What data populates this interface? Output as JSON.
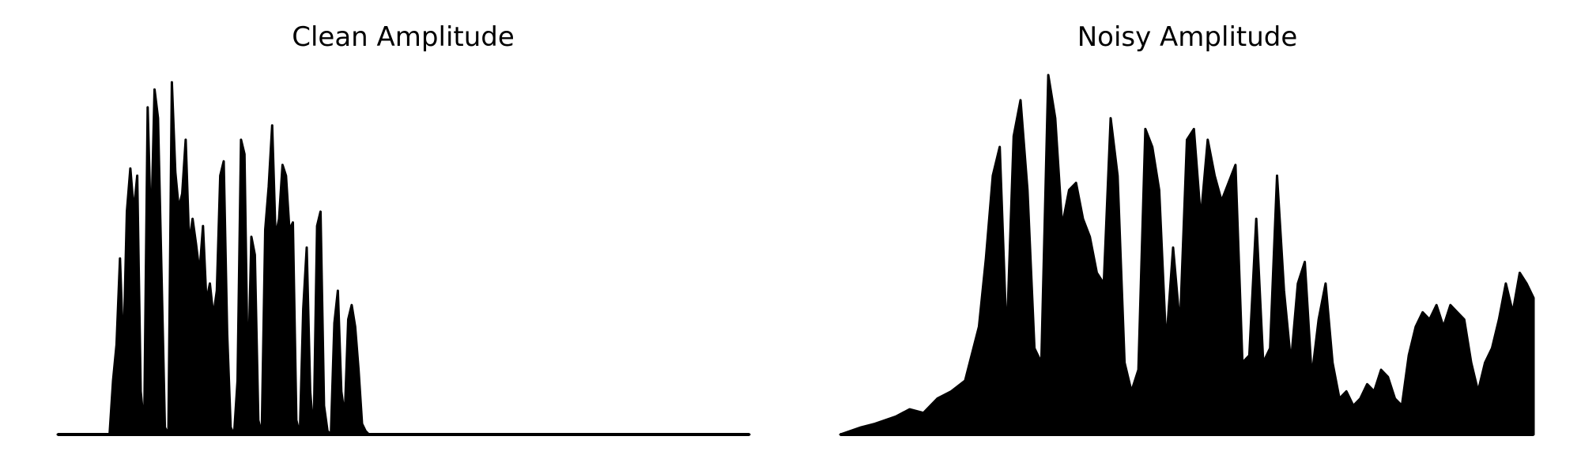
{
  "colors": {
    "background": "#ffffff",
    "waveform": "#000000"
  },
  "chart_data": [
    {
      "type": "area",
      "title": "Clean Amplitude",
      "xlabel": "",
      "ylabel": "",
      "axes_visible": false,
      "grid": false,
      "ylim": [
        0,
        1.0
      ],
      "x": [
        0,
        5,
        10,
        15,
        16,
        17,
        18,
        19,
        20,
        21,
        22,
        23,
        24,
        25,
        26,
        27,
        28,
        29,
        30,
        31,
        32,
        33,
        34,
        35,
        36,
        37,
        38,
        39,
        40,
        41,
        42,
        43,
        44,
        45,
        46,
        47,
        48,
        49,
        50,
        51,
        52,
        53,
        54,
        55,
        56,
        57,
        58,
        59,
        60,
        61,
        62,
        63,
        64,
        65,
        66,
        67,
        68,
        69,
        70,
        71,
        72,
        73,
        74,
        75,
        76,
        77,
        78,
        79,
        80,
        81,
        82,
        83,
        84,
        85,
        86,
        87,
        88,
        89,
        90,
        91,
        92,
        93,
        94,
        95,
        100,
        110,
        120,
        130,
        140,
        150,
        160,
        170,
        180,
        190,
        200
      ],
      "y": [
        0,
        0,
        0,
        0,
        0.15,
        0.25,
        0.49,
        0.22,
        0.62,
        0.74,
        0.62,
        0.72,
        0.12,
        0.02,
        0.91,
        0.55,
        0.96,
        0.88,
        0.45,
        0.02,
        0,
        0.98,
        0.73,
        0.63,
        0.67,
        0.82,
        0.53,
        0.6,
        0.53,
        0.45,
        0.58,
        0.37,
        0.42,
        0.33,
        0.4,
        0.72,
        0.76,
        0.28,
        0.02,
        0,
        0.15,
        0.82,
        0.78,
        0.14,
        0.55,
        0.5,
        0.04,
        0,
        0.57,
        0.69,
        0.86,
        0.55,
        0.6,
        0.75,
        0.72,
        0.57,
        0.59,
        0.04,
        0,
        0.35,
        0.52,
        0.12,
        0,
        0.58,
        0.62,
        0.08,
        0.01,
        0,
        0.31,
        0.4,
        0.12,
        0.05,
        0.32,
        0.36,
        0.3,
        0.18,
        0.03,
        0.01,
        0,
        0,
        0,
        0,
        0,
        0,
        0,
        0,
        0,
        0,
        0,
        0,
        0,
        0,
        0,
        0,
        0
      ]
    },
    {
      "type": "area",
      "title": "Noisy Amplitude",
      "xlabel": "",
      "ylabel": "",
      "axes_visible": false,
      "grid": false,
      "ylim": [
        0,
        1.0
      ],
      "x": [
        0,
        3,
        5,
        8,
        10,
        12,
        14,
        16,
        18,
        20,
        21,
        22,
        23,
        24,
        25,
        26,
        27,
        28,
        29,
        30,
        31,
        32,
        33,
        34,
        35,
        36,
        37,
        38,
        39,
        40,
        41,
        42,
        43,
        44,
        45,
        46,
        47,
        48,
        49,
        50,
        51,
        52,
        53,
        54,
        55,
        56,
        57,
        58,
        59,
        60,
        61,
        62,
        63,
        64,
        65,
        66,
        67,
        68,
        69,
        70,
        71,
        72,
        73,
        74,
        75,
        76,
        77,
        78,
        79,
        80,
        81,
        82,
        83,
        84,
        85,
        86,
        87,
        88,
        89,
        90,
        91,
        92,
        93,
        94,
        95,
        96,
        97,
        98,
        99,
        100
      ],
      "y": [
        0,
        0.02,
        0.03,
        0.05,
        0.07,
        0.06,
        0.1,
        0.12,
        0.15,
        0.3,
        0.49,
        0.72,
        0.8,
        0.26,
        0.83,
        0.93,
        0.68,
        0.24,
        0.2,
        1.0,
        0.88,
        0.58,
        0.68,
        0.7,
        0.6,
        0.55,
        0.45,
        0.42,
        0.88,
        0.72,
        0.2,
        0.12,
        0.18,
        0.85,
        0.8,
        0.68,
        0.25,
        0.52,
        0.3,
        0.82,
        0.85,
        0.6,
        0.82,
        0.72,
        0.65,
        0.7,
        0.75,
        0.2,
        0.22,
        0.6,
        0.2,
        0.24,
        0.72,
        0.4,
        0.2,
        0.42,
        0.48,
        0.16,
        0.32,
        0.42,
        0.2,
        0.1,
        0.12,
        0.08,
        0.1,
        0.14,
        0.12,
        0.18,
        0.16,
        0.1,
        0.08,
        0.22,
        0.3,
        0.34,
        0.32,
        0.36,
        0.3,
        0.36,
        0.34,
        0.32,
        0.2,
        0.12,
        0.2,
        0.24,
        0.32,
        0.42,
        0.34,
        0.45,
        0.42,
        0.38
      ]
    }
  ]
}
